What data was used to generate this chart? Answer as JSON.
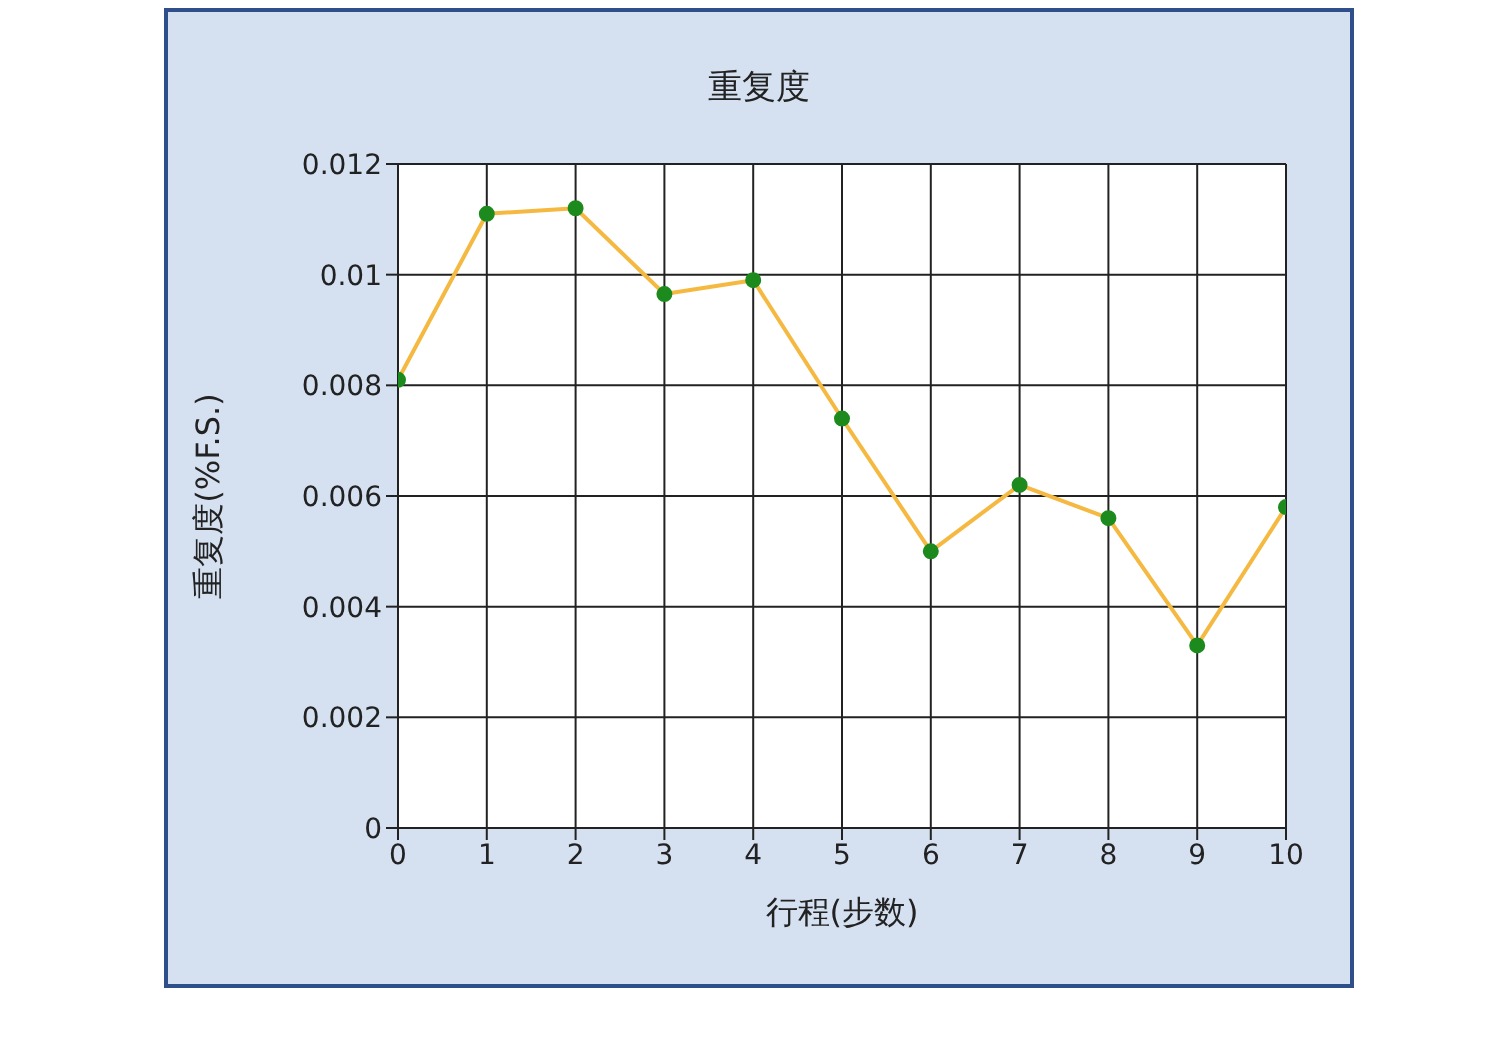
{
  "chart_data": {
    "type": "line",
    "title": "重复度",
    "xlabel": "行程(步数)",
    "ylabel": "重复度(%F.S.)",
    "x": [
      0,
      1,
      2,
      3,
      4,
      5,
      6,
      7,
      8,
      9,
      10
    ],
    "series": [
      {
        "color": "#f5b941",
        "values": [
          0.0081,
          0.0111,
          0.0112,
          0.00965,
          0.0099,
          0.0074,
          0.005,
          0.0062,
          0.0056,
          0.0033,
          0.0058
        ]
      }
    ],
    "xlim": [
      0,
      10
    ],
    "xticks": [
      0,
      1,
      2,
      3,
      4,
      5,
      6,
      7,
      8,
      9,
      10
    ],
    "ylim": [
      0,
      0.012
    ],
    "yticks": [
      0,
      0.002,
      0.004,
      0.006,
      0.008,
      0.01,
      0.012
    ],
    "grid": true,
    "marker": "circle",
    "line_style": "solid"
  }
}
